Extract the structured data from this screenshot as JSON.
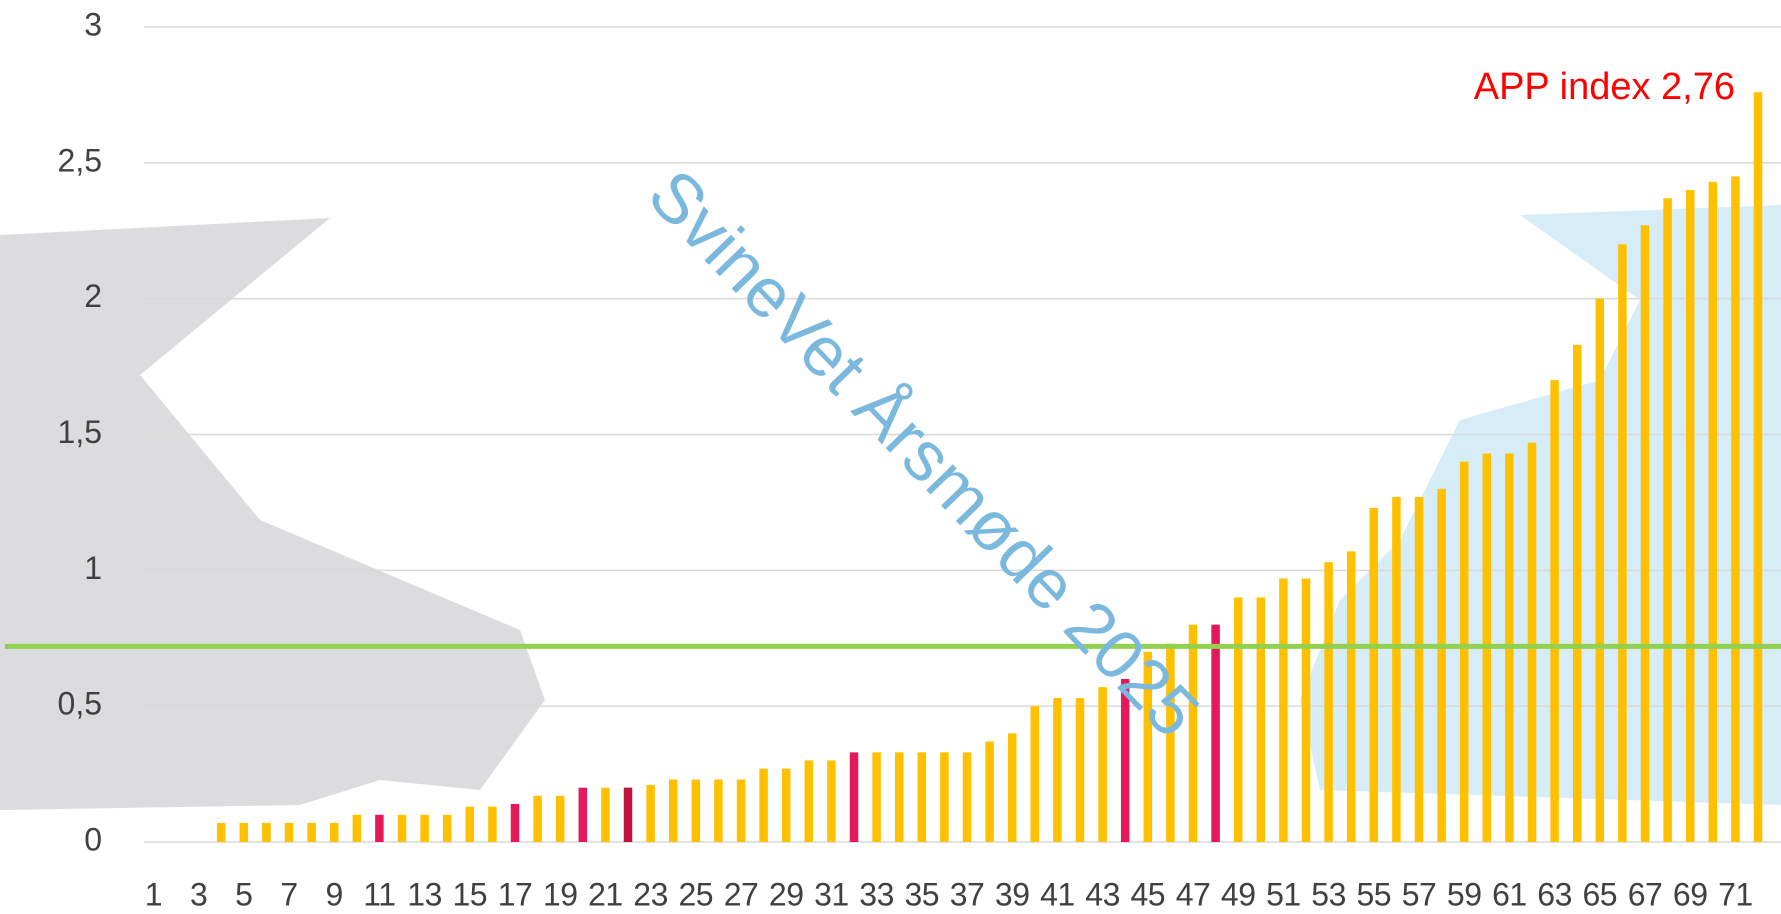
{
  "chart_data": {
    "type": "bar",
    "watermark": "SvineVet Årsmøde 2025",
    "annotation": "APP index 2,76",
    "annotation_color": "#ff0000",
    "categories": [
      "1",
      null,
      "3",
      null,
      "5",
      null,
      "7",
      null,
      "9",
      null,
      "11",
      null,
      "13",
      null,
      "15",
      null,
      "17",
      null,
      "19",
      null,
      "21",
      null,
      "23",
      null,
      "25",
      null,
      "27",
      null,
      "29",
      null,
      "31",
      null,
      "33",
      null,
      "35",
      null,
      "37",
      null,
      "39",
      null,
      "41",
      null,
      "43",
      null,
      "45",
      null,
      "47",
      null,
      "49",
      null,
      "51",
      null,
      "53",
      null,
      "55",
      null,
      "57",
      null,
      "59",
      null,
      "61",
      null,
      "63",
      null,
      "65",
      null,
      "67",
      null,
      "69",
      null,
      "71",
      null
    ],
    "values": [
      0,
      0,
      0,
      0.07,
      0.07,
      0.07,
      0.07,
      0.07,
      0.07,
      0.1,
      0.1,
      0.1,
      0.1,
      0.1,
      0.13,
      0.13,
      0.14,
      0.17,
      0.17,
      0.2,
      0.2,
      0.2,
      0.21,
      0.23,
      0.23,
      0.23,
      0.23,
      0.27,
      0.27,
      0.3,
      0.3,
      0.33,
      0.33,
      0.33,
      0.33,
      0.33,
      0.33,
      0.37,
      0.4,
      0.5,
      0.53,
      0.53,
      0.57,
      0.6,
      0.7,
      0.73,
      0.8,
      0.8,
      0.9,
      0.9,
      0.97,
      0.97,
      1.03,
      1.07,
      1.23,
      1.27,
      1.27,
      1.3,
      1.4,
      1.43,
      1.43,
      1.47,
      1.7,
      1.83,
      2.0,
      2.2,
      2.27,
      2.37,
      2.4,
      2.43,
      2.45,
      2.76
    ],
    "colors": [
      "#ffc000",
      "#ffc000",
      "#ffc000",
      "#ffc000",
      "#ffc000",
      "#ffc000",
      "#ffc000",
      "#ffc000",
      "#ffc000",
      "#ffc000",
      "#e5195a",
      "#ffc000",
      "#ffc000",
      "#ffc000",
      "#ffc000",
      "#ffc000",
      "#e5195a",
      "#ffc000",
      "#ffc000",
      "#e5195a",
      "#ffc000",
      "#c0143c",
      "#ffc000",
      "#ffc000",
      "#ffc000",
      "#ffc000",
      "#ffc000",
      "#ffc000",
      "#ffc000",
      "#ffc000",
      "#ffc000",
      "#e5195a",
      "#ffc000",
      "#ffc000",
      "#ffc000",
      "#ffc000",
      "#ffc000",
      "#ffc000",
      "#ffc000",
      "#ffc000",
      "#ffc000",
      "#ffc000",
      "#ffc000",
      "#e5195a",
      "#ffc000",
      "#ffc000",
      "#ffc000",
      "#e5195a",
      "#ffc000",
      "#ffc000",
      "#ffc000",
      "#ffc000",
      "#ffc000",
      "#ffc000",
      "#ffc000",
      "#ffc000",
      "#ffc000",
      "#ffc000",
      "#ffc000",
      "#ffc000",
      "#ffc000",
      "#ffc000",
      "#ffc000",
      "#ffc000",
      "#ffc000",
      "#ffc000",
      "#ffc000",
      "#ffc000",
      "#ffc000",
      "#ffc000",
      "#ffc000",
      "#ffc000"
    ],
    "reference_line": 0.72,
    "reference_color": "#92d050",
    "ylim": [
      0,
      3
    ],
    "yticks": [
      0,
      {
        "value": 0.5,
        "label": "0,5"
      },
      1,
      {
        "value": 1.5,
        "label": "1,5"
      },
      2,
      {
        "value": 2.5,
        "label": "2,5"
      },
      3
    ],
    "grid": true
  }
}
